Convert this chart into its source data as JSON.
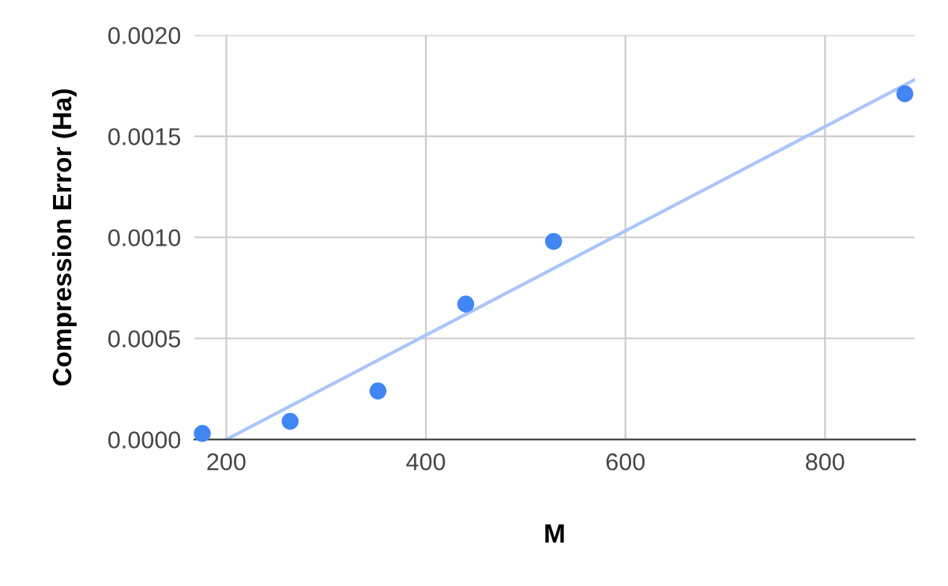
{
  "chart_data": {
    "type": "scatter",
    "xlabel": "M",
    "ylabel": "Compression Error (Ha)",
    "series": [
      {
        "color": "#4285f4",
        "x": [
          176,
          264,
          352,
          440,
          528,
          880
        ],
        "values": [
          3e-05,
          9e-05,
          0.00024,
          0.00067,
          0.00098,
          0.00171
        ],
        "marker": "circle"
      },
      {
        "type": "line",
        "color": "#aac6f8",
        "x": [
          200,
          890
        ],
        "values": [
          0.0,
          0.00178
        ],
        "marker": "none"
      }
    ],
    "xlim": [
      168,
      890
    ],
    "ylim": [
      0,
      0.002
    ],
    "xticks": [
      200,
      400,
      600,
      800
    ],
    "yticks": [
      {
        "value": 0,
        "label": "0.0000"
      },
      {
        "value": 0.0005,
        "label": "0.0005"
      },
      {
        "value": 0.001,
        "label": "0.0010"
      },
      {
        "value": 0.0015,
        "label": "0.0015"
      },
      {
        "value": 0.002,
        "label": "0.0020"
      }
    ],
    "grid": true,
    "legend": false
  }
}
